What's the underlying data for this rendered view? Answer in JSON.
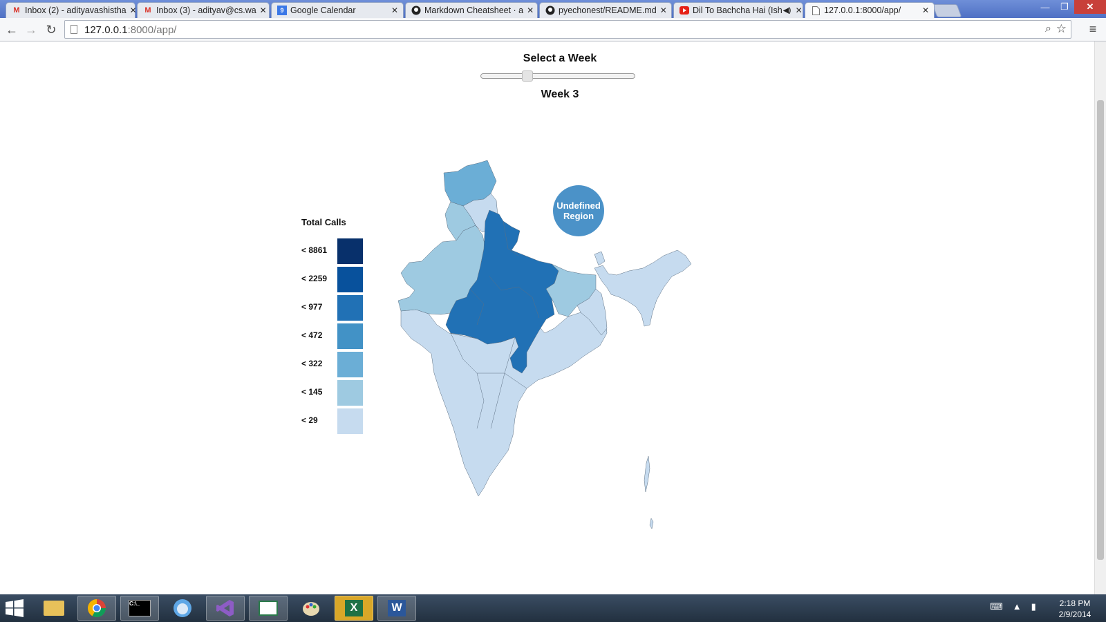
{
  "browser": {
    "tabs": [
      {
        "title": "Inbox (2) - adityavashistha",
        "icon": "gmail-icon",
        "active": false
      },
      {
        "title": "Inbox (3) - adityav@cs.wa",
        "icon": "gmail-icon",
        "active": false
      },
      {
        "title": "Google Calendar",
        "icon": "calendar-icon",
        "active": false
      },
      {
        "title": "Markdown Cheatsheet · a",
        "icon": "github-icon",
        "active": false
      },
      {
        "title": "pyechonest/README.md",
        "icon": "github-icon",
        "active": false
      },
      {
        "title": "Dil To Bachcha Hai (Ish",
        "icon": "youtube-icon",
        "active": false
      },
      {
        "title": "127.0.0.1:8000/app/",
        "icon": "page-icon",
        "active": true
      }
    ],
    "url_host": "127.0.0.1",
    "url_rest": ":8000/app/"
  },
  "page": {
    "slider_title": "Select a Week",
    "slider_value": 3,
    "slider_min": 1,
    "slider_max": 16,
    "week_label": "Week 3",
    "legend_title": "Total Calls",
    "legend": [
      {
        "label": "< 8861",
        "color": "#08306b"
      },
      {
        "label": "< 2259",
        "color": "#08519c"
      },
      {
        "label": "< 977",
        "color": "#2171b5"
      },
      {
        "label": "< 472",
        "color": "#4292c6"
      },
      {
        "label": "< 322",
        "color": "#6baed6"
      },
      {
        "label": "< 145",
        "color": "#9ecae1"
      },
      {
        "label": "< 29",
        "color": "#c6dbef"
      }
    ],
    "bubble_label": "Undefined Region",
    "bubble_color": "#4b92c8"
  },
  "taskbar": {
    "apps": [
      "file-explorer-icon",
      "chrome-icon",
      "cmd-icon",
      "app-icon",
      "visual-studio-icon",
      "reader-icon",
      "paint-icon",
      "excel-icon",
      "word-icon"
    ],
    "time": "2:18 PM",
    "date": "2/9/2014"
  }
}
